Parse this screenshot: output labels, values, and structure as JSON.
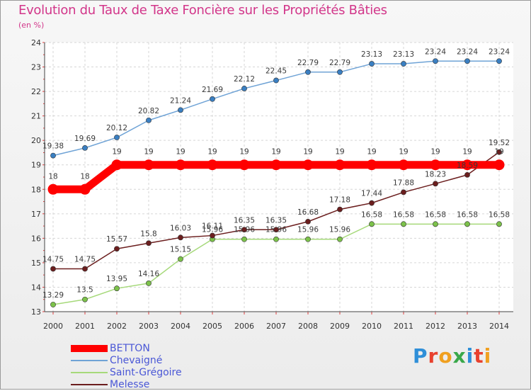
{
  "header": {
    "title": "Evolution du Taux de Taxe Foncière sur les Propriétés Bâties",
    "subtitle": "(en %)"
  },
  "legend": {
    "items": [
      {
        "label": "BETTON",
        "color": "#ff0000"
      },
      {
        "label": "Chevaigné",
        "color": "#6fa3d6"
      },
      {
        "label": "Saint-Grégoire",
        "color": "#a6d97a"
      },
      {
        "label": "Melesse",
        "color": "#6b1e1e"
      }
    ]
  },
  "logo": {
    "letters": [
      "P",
      "r",
      "o",
      "x",
      "i",
      "t",
      "i"
    ],
    "colors": [
      "#2f8fd8",
      "#e8412e",
      "#f0a020",
      "#3aa84a",
      "#2f8fd8",
      "#e8412e",
      "#f0a020"
    ]
  },
  "chart_data": {
    "type": "line",
    "title": "Evolution du Taux de Taxe Foncière sur les Propriétés Bâties",
    "ylabel": "(en %)",
    "x": [
      "2000",
      "2001",
      "2002",
      "2003",
      "2004",
      "2005",
      "2006",
      "2007",
      "2008",
      "2009",
      "2010",
      "2011",
      "2012",
      "2013",
      "2014"
    ],
    "ylim": [
      13,
      24
    ],
    "yticks": [
      13,
      14,
      15,
      16,
      17,
      18,
      19,
      20,
      21,
      22,
      23,
      24
    ],
    "grid": true,
    "series": [
      {
        "name": "BETTON",
        "color": "#ff0000",
        "values": [
          18,
          18,
          19,
          19,
          19,
          19,
          19,
          19,
          19,
          19,
          19,
          19,
          19,
          19,
          19
        ],
        "labels": [
          "18",
          "18",
          "19",
          "19",
          "19",
          "19",
          "19",
          "19",
          "19",
          "19",
          "19",
          "19",
          "19",
          "19",
          "19"
        ]
      },
      {
        "name": "Chevaigné",
        "color": "#6fa3d6",
        "marker": "#3a7fc2",
        "values": [
          19.38,
          19.69,
          20.12,
          20.82,
          21.24,
          21.69,
          22.12,
          22.45,
          22.79,
          22.79,
          23.13,
          23.13,
          23.24,
          23.24,
          23.24
        ],
        "labels": [
          "19.38",
          "19.69",
          "20.12",
          "20.82",
          "21.24",
          "21.69",
          "22.12",
          "22.45",
          "22.79",
          "22.79",
          "23.13",
          "23.13",
          "23.24",
          "23.24",
          "23.24"
        ]
      },
      {
        "name": "Saint-Grégoire",
        "color": "#a6d97a",
        "marker": "#7cc24a",
        "values": [
          13.29,
          13.5,
          13.95,
          14.16,
          15.15,
          15.96,
          15.96,
          15.96,
          15.96,
          15.96,
          16.58,
          16.58,
          16.58,
          16.58,
          16.58
        ],
        "labels": [
          "13.29",
          "13.5",
          "13.95",
          "14.16",
          "15.15",
          "15.96",
          "15.96",
          "15.96",
          "15.96",
          "15.96",
          "16.58",
          "16.58",
          "16.58",
          "16.58",
          "16.58"
        ]
      },
      {
        "name": "Melesse",
        "color": "#6b1e1e",
        "marker": "#6b1e1e",
        "values": [
          14.75,
          14.75,
          15.57,
          15.8,
          16.03,
          16.11,
          16.35,
          16.35,
          16.68,
          17.18,
          17.44,
          17.88,
          18.23,
          18.59,
          19.52
        ],
        "labels": [
          "14.75",
          "14.75",
          "15.57",
          "15.8",
          "16.03",
          "16.11",
          "16.35",
          "16.35",
          "16.68",
          "17.18",
          "17.44",
          "17.88",
          "18.23",
          "18.59",
          "19.52"
        ]
      }
    ]
  }
}
